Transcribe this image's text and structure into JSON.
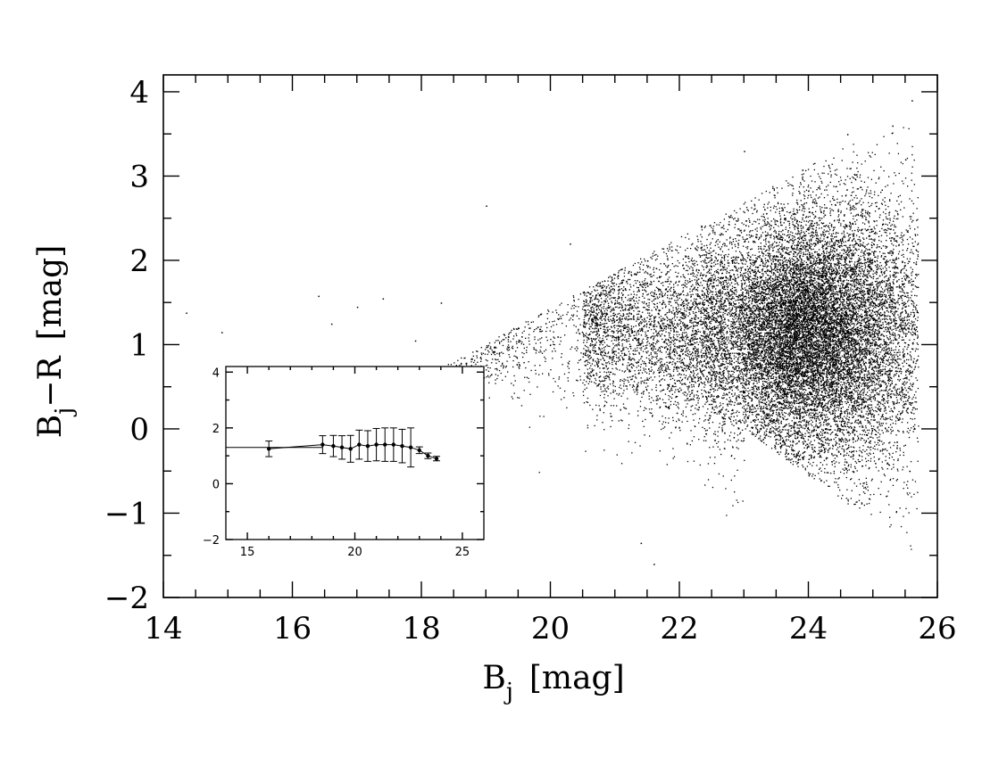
{
  "chart_data": [
    {
      "type": "scatter",
      "title": "",
      "xlabel_base": "B",
      "xlabel_sub": "j",
      "xlabel_unit": "[mag]",
      "ylabel_base": "B",
      "ylabel_sub": "j",
      "ylabel_rest": "−R",
      "ylabel_unit": "[mag]",
      "xlim": [
        14,
        26
      ],
      "ylim": [
        -2,
        4.2
      ],
      "xticks": [
        14,
        16,
        18,
        20,
        22,
        24,
        26
      ],
      "xtick_labels": [
        "14",
        "16",
        "18",
        "20",
        "22",
        "24",
        "26"
      ],
      "yticks": [
        -2,
        -1,
        0,
        1,
        2,
        3,
        4
      ],
      "ytick_labels": [
        "−2",
        "−1",
        "0",
        "1",
        "2",
        "3",
        "4"
      ],
      "point_count_approx": 20000,
      "distribution_summary": "dense cloud of galaxies peaking near Bj≈24, Bj−R≈1.1; sparse tail toward bright magnitudes",
      "sample_points": [
        [
          14.35,
          1.38
        ],
        [
          14.9,
          1.15
        ],
        [
          16.4,
          1.58
        ],
        [
          16.6,
          1.25
        ],
        [
          17.0,
          1.45
        ],
        [
          17.4,
          1.55
        ],
        [
          17.9,
          1.05
        ],
        [
          18.3,
          1.5
        ],
        [
          19.0,
          2.65
        ],
        [
          19.5,
          1.2
        ],
        [
          20.3,
          2.2
        ],
        [
          20.6,
          0.6
        ],
        [
          21.0,
          1.5
        ],
        [
          21.5,
          2.0
        ],
        [
          21.4,
          -1.35
        ],
        [
          21.6,
          -1.6
        ],
        [
          22.0,
          1.3
        ],
        [
          22.5,
          1.7
        ],
        [
          22.8,
          0.5
        ],
        [
          23.0,
          3.3
        ],
        [
          23.3,
          1.1
        ],
        [
          23.6,
          2.6
        ],
        [
          23.8,
          1.2
        ],
        [
          24.0,
          1.0
        ],
        [
          24.2,
          0.3
        ],
        [
          24.4,
          1.8
        ],
        [
          24.6,
          3.5
        ],
        [
          24.8,
          2.2
        ],
        [
          25.0,
          1.3
        ],
        [
          25.3,
          3.6
        ],
        [
          25.5,
          3.2
        ],
        [
          25.6,
          3.9
        ]
      ]
    },
    {
      "type": "line",
      "inset": true,
      "title": "",
      "xlim": [
        14,
        26
      ],
      "ylim": [
        -2,
        4.2
      ],
      "xticks": [
        15,
        20,
        25
      ],
      "xtick_labels": [
        "15",
        "20",
        "25"
      ],
      "yticks": [
        -2,
        0,
        2,
        4
      ],
      "ytick_labels": [
        "−2",
        "0",
        "2",
        "4"
      ],
      "reference_line": 1.3,
      "points": [
        {
          "x": 16.0,
          "y": 1.25,
          "err": 0.28
        },
        {
          "x": 18.5,
          "y": 1.4,
          "err": 0.32
        },
        {
          "x": 19.0,
          "y": 1.35,
          "err": 0.38
        },
        {
          "x": 19.4,
          "y": 1.3,
          "err": 0.42
        },
        {
          "x": 19.8,
          "y": 1.25,
          "err": 0.48
        },
        {
          "x": 20.2,
          "y": 1.4,
          "err": 0.52
        },
        {
          "x": 20.6,
          "y": 1.35,
          "err": 0.55
        },
        {
          "x": 21.0,
          "y": 1.4,
          "err": 0.58
        },
        {
          "x": 21.4,
          "y": 1.4,
          "err": 0.6
        },
        {
          "x": 21.8,
          "y": 1.4,
          "err": 0.6
        },
        {
          "x": 22.2,
          "y": 1.35,
          "err": 0.6
        },
        {
          "x": 22.6,
          "y": 1.3,
          "err": 0.7
        },
        {
          "x": 23.0,
          "y": 1.2,
          "err": 0.12
        },
        {
          "x": 23.4,
          "y": 1.0,
          "err": 0.1
        },
        {
          "x": 23.8,
          "y": 0.9,
          "err": 0.08
        }
      ]
    }
  ]
}
